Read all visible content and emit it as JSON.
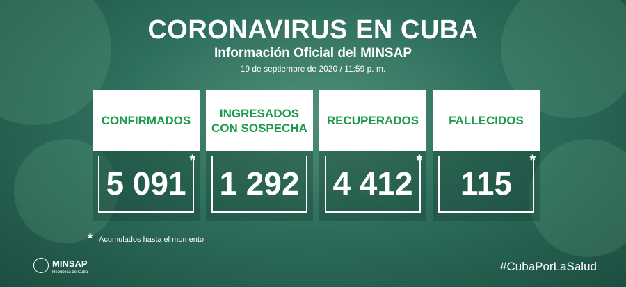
{
  "header": {
    "title": "CORONAVIRUS EN CUBA",
    "subtitle": "Información Oficial del MINSAP",
    "date": "19 de septiembre de 2020 / 11:59 p. m."
  },
  "cards": [
    {
      "label": "CONFIRMADOS",
      "value": "5 091",
      "note_mark": "*"
    },
    {
      "label": "INGRESADOS\nCON SOSPECHA",
      "value": "1 292"
    },
    {
      "label": "RECUPERADOS",
      "value": "4 412",
      "note_mark": "*"
    },
    {
      "label": "FALLECIDOS",
      "value": "115",
      "note_mark": "*"
    }
  ],
  "footnote": {
    "mark": "*",
    "text": "Acumulados hasta el momento"
  },
  "footer": {
    "logo": "MINSAP",
    "logo_sub": "República de Cuba",
    "hashtag": "#CubaPorLaSalud"
  }
}
